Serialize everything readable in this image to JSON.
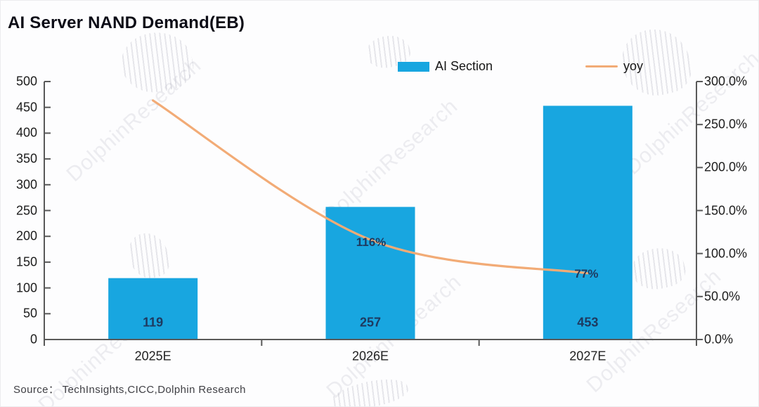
{
  "title": "AI Server NAND Demand(EB)",
  "legend": {
    "items": [
      {
        "label": "AI Section",
        "type": "bar"
      },
      {
        "label": "yoy",
        "type": "line"
      }
    ],
    "position": "top"
  },
  "source": "Source： TechInsights,CICC,Dolphin Research",
  "watermark": {
    "text": "DolphinResearch"
  },
  "colors": {
    "bar": "#18A6E0",
    "line": "#F2AB76",
    "data_label": "#1E3A60",
    "axis": "#595959",
    "text": "#1c1c1c"
  },
  "chart_data": {
    "type": "bar",
    "subtype": "combo-bar-line",
    "title": "AI Server NAND Demand(EB)",
    "categories": [
      "2025E",
      "2026E",
      "2027E"
    ],
    "series": [
      {
        "name": "AI Section",
        "type": "bar",
        "axis": "left",
        "values": [
          119,
          257,
          453
        ],
        "data_labels": [
          "119",
          "257",
          "453"
        ]
      },
      {
        "name": "yoy",
        "type": "line",
        "axis": "right",
        "values_pct": [
          278,
          116,
          77
        ],
        "data_labels": [
          "",
          "116%",
          "77%"
        ],
        "note": "first point has no visible label; 278% estimated from plot position"
      }
    ],
    "left_axis": {
      "ticks": [
        0,
        50,
        100,
        150,
        200,
        250,
        300,
        350,
        400,
        450,
        500
      ],
      "range": [
        0,
        500
      ]
    },
    "right_axis": {
      "tick_labels": [
        "0.0%",
        "50.0%",
        "100.0%",
        "150.0%",
        "200.0%",
        "250.0%",
        "300.0%"
      ],
      "range_pct": [
        0,
        300
      ]
    },
    "xlabel": "",
    "ylabel": "",
    "grid": false,
    "legend_position": "top"
  }
}
